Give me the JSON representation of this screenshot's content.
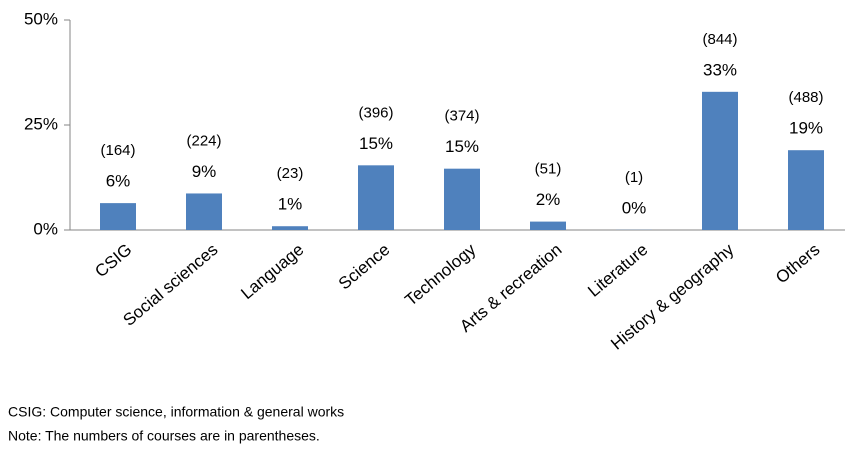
{
  "chart_data": {
    "type": "bar",
    "categories": [
      "CSIG",
      "Social sciences",
      "Language",
      "Science",
      "Technology",
      "Arts & recreation",
      "Literature",
      "History & geography",
      "Others"
    ],
    "values": [
      6.4,
      8.7,
      0.9,
      15.4,
      14.6,
      2.0,
      0.04,
      32.9,
      19.0
    ],
    "value_labels": [
      "6%",
      "9%",
      "1%",
      "15%",
      "15%",
      "2%",
      "0%",
      "33%",
      "19%"
    ],
    "count_labels": [
      "(164)",
      "(224)",
      "(23)",
      "(396)",
      "(374)",
      "(51)",
      "(1)",
      "(844)",
      "(488)"
    ],
    "color": "#4f81bd",
    "ylim": [
      0,
      50
    ],
    "yticks": [
      {
        "value": 0,
        "label": "0%"
      },
      {
        "value": 25,
        "label": "25%"
      },
      {
        "value": 50,
        "label": "50%"
      }
    ],
    "grid": false,
    "notes": [
      "CSIG: Computer science, information & general works",
      "Note: The numbers of courses are in parentheses."
    ]
  }
}
